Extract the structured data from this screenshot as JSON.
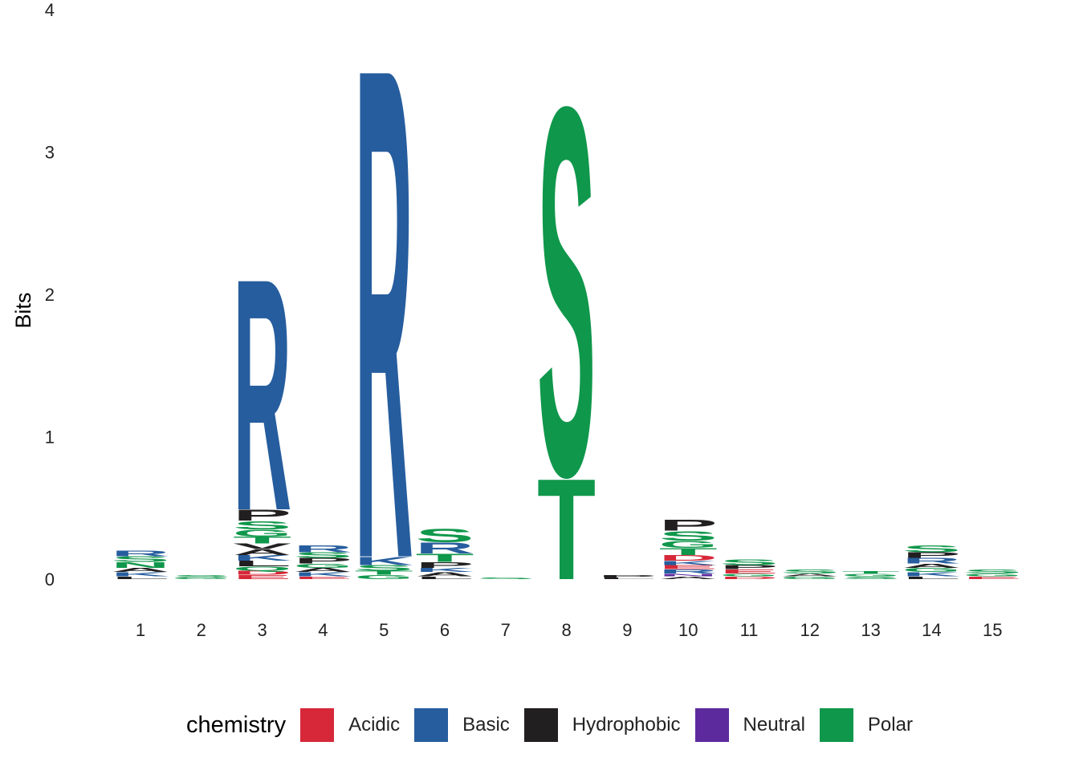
{
  "chart_data": {
    "type": "sequence-logo",
    "ylabel": "Bits",
    "ylim": [
      0,
      4
    ],
    "y_ticks": [
      "0",
      "1",
      "2",
      "3",
      "4"
    ],
    "positions": [
      "1",
      "2",
      "3",
      "4",
      "5",
      "6",
      "7",
      "8",
      "9",
      "10",
      "11",
      "12",
      "13",
      "14",
      "15"
    ],
    "legend_title": "chemistry",
    "legend": [
      {
        "name": "Acidic",
        "color": "#d62839"
      },
      {
        "name": "Basic",
        "color": "#265d9e"
      },
      {
        "name": "Hydrophobic",
        "color": "#221f20"
      },
      {
        "name": "Neutral",
        "color": "#5d2a9e"
      },
      {
        "name": "Polar",
        "color": "#0f974b"
      }
    ],
    "letters": [
      [
        {
          "l": "N",
          "c": "Polar",
          "h": 0.04
        },
        {
          "l": "S",
          "c": "Polar",
          "h": 0.04
        },
        {
          "l": "R",
          "c": "Basic",
          "h": 0.04
        },
        {
          "l": "K",
          "c": "Basic",
          "h": 0.03
        },
        {
          "l": "A",
          "c": "Hydrophobic",
          "h": 0.03
        },
        {
          "l": "L",
          "c": "Hydrophobic",
          "h": 0.02
        }
      ],
      [
        {
          "l": "S",
          "c": "Polar",
          "h": 0.02
        },
        {
          "l": "G",
          "c": "Polar",
          "h": 0.01
        }
      ],
      [
        {
          "l": "R",
          "c": "Basic",
          "h": 1.7
        },
        {
          "l": "P",
          "c": "Hydrophobic",
          "h": 0.08
        },
        {
          "l": "S",
          "c": "Polar",
          "h": 0.06
        },
        {
          "l": "T",
          "c": "Polar",
          "h": 0.05
        },
        {
          "l": "L",
          "c": "Hydrophobic",
          "h": 0.04
        },
        {
          "l": "K",
          "c": "Basic",
          "h": 0.04
        },
        {
          "l": "G",
          "c": "Polar",
          "h": 0.05
        },
        {
          "l": "A",
          "c": "Hydrophobic",
          "h": 0.04
        },
        {
          "l": "V",
          "c": "Hydrophobic",
          "h": 0.04
        },
        {
          "l": "E",
          "c": "Acidic",
          "h": 0.03
        },
        {
          "l": "D",
          "c": "Acidic",
          "h": 0.03
        },
        {
          "l": "Q",
          "c": "Polar",
          "h": 0.03
        }
      ],
      [
        {
          "l": "R",
          "c": "Basic",
          "h": 0.05
        },
        {
          "l": "P",
          "c": "Hydrophobic",
          "h": 0.04
        },
        {
          "l": "S",
          "c": "Polar",
          "h": 0.04
        },
        {
          "l": "K",
          "c": "Basic",
          "h": 0.03
        },
        {
          "l": "A",
          "c": "Hydrophobic",
          "h": 0.03
        },
        {
          "l": "G",
          "c": "Polar",
          "h": 0.03
        },
        {
          "l": "E",
          "c": "Acidic",
          "h": 0.02
        }
      ],
      [
        {
          "l": "R",
          "c": "Basic",
          "h": 3.6
        },
        {
          "l": "K",
          "c": "Basic",
          "h": 0.06
        },
        {
          "l": "S",
          "c": "Polar",
          "h": 0.04
        },
        {
          "l": "G",
          "c": "Polar",
          "h": 0.03
        },
        {
          "l": "T",
          "c": "Polar",
          "h": 0.03
        }
      ],
      [
        {
          "l": "S",
          "c": "Polar",
          "h": 0.1
        },
        {
          "l": "R",
          "c": "Basic",
          "h": 0.08
        },
        {
          "l": "T",
          "c": "Polar",
          "h": 0.06
        },
        {
          "l": "P",
          "c": "Hydrophobic",
          "h": 0.04
        },
        {
          "l": "A",
          "c": "Hydrophobic",
          "h": 0.03
        },
        {
          "l": "K",
          "c": "Basic",
          "h": 0.03
        },
        {
          "l": "L",
          "c": "Hydrophobic",
          "h": 0.02
        }
      ],
      [
        {
          "l": "S",
          "c": "Polar",
          "h": 0.01
        }
      ],
      [
        {
          "l": "S",
          "c": "Polar",
          "h": 2.7
        },
        {
          "l": "T",
          "c": "Polar",
          "h": 0.74
        }
      ],
      [
        {
          "l": "P",
          "c": "Hydrophobic",
          "h": 0.02
        },
        {
          "l": "L",
          "c": "Hydrophobic",
          "h": 0.01
        }
      ],
      [
        {
          "l": "P",
          "c": "Hydrophobic",
          "h": 0.08
        },
        {
          "l": "S",
          "c": "Polar",
          "h": 0.07
        },
        {
          "l": "T",
          "c": "Polar",
          "h": 0.05
        },
        {
          "l": "G",
          "c": "Polar",
          "h": 0.05
        },
        {
          "l": "D",
          "c": "Acidic",
          "h": 0.04
        },
        {
          "l": "R",
          "c": "Basic",
          "h": 0.03
        },
        {
          "l": "E",
          "c": "Acidic",
          "h": 0.03
        },
        {
          "l": "K",
          "c": "Basic",
          "h": 0.03
        },
        {
          "l": "A",
          "c": "Hydrophobic",
          "h": 0.02
        },
        {
          "l": "N",
          "c": "Neutral",
          "h": 0.02
        }
      ],
      [
        {
          "l": "S",
          "c": "Polar",
          "h": 0.04
        },
        {
          "l": "E",
          "c": "Acidic",
          "h": 0.03
        },
        {
          "l": "P",
          "c": "Hydrophobic",
          "h": 0.03
        },
        {
          "l": "D",
          "c": "Acidic",
          "h": 0.02
        },
        {
          "l": "G",
          "c": "Polar",
          "h": 0.02
        }
      ],
      [
        {
          "l": "S",
          "c": "Polar",
          "h": 0.03
        },
        {
          "l": "G",
          "c": "Polar",
          "h": 0.02
        },
        {
          "l": "A",
          "c": "Hydrophobic",
          "h": 0.02
        }
      ],
      [
        {
          "l": "S",
          "c": "Polar",
          "h": 0.02
        },
        {
          "l": "G",
          "c": "Polar",
          "h": 0.02
        },
        {
          "l": "T",
          "c": "Polar",
          "h": 0.02
        }
      ],
      [
        {
          "l": "S",
          "c": "Polar",
          "h": 0.05
        },
        {
          "l": "R",
          "c": "Basic",
          "h": 0.04
        },
        {
          "l": "P",
          "c": "Hydrophobic",
          "h": 0.04
        },
        {
          "l": "K",
          "c": "Basic",
          "h": 0.03
        },
        {
          "l": "G",
          "c": "Polar",
          "h": 0.03
        },
        {
          "l": "A",
          "c": "Hydrophobic",
          "h": 0.03
        },
        {
          "l": "L",
          "c": "Hydrophobic",
          "h": 0.02
        }
      ],
      [
        {
          "l": "S",
          "c": "Polar",
          "h": 0.03
        },
        {
          "l": "E",
          "c": "Acidic",
          "h": 0.02
        },
        {
          "l": "G",
          "c": "Polar",
          "h": 0.02
        }
      ]
    ]
  }
}
